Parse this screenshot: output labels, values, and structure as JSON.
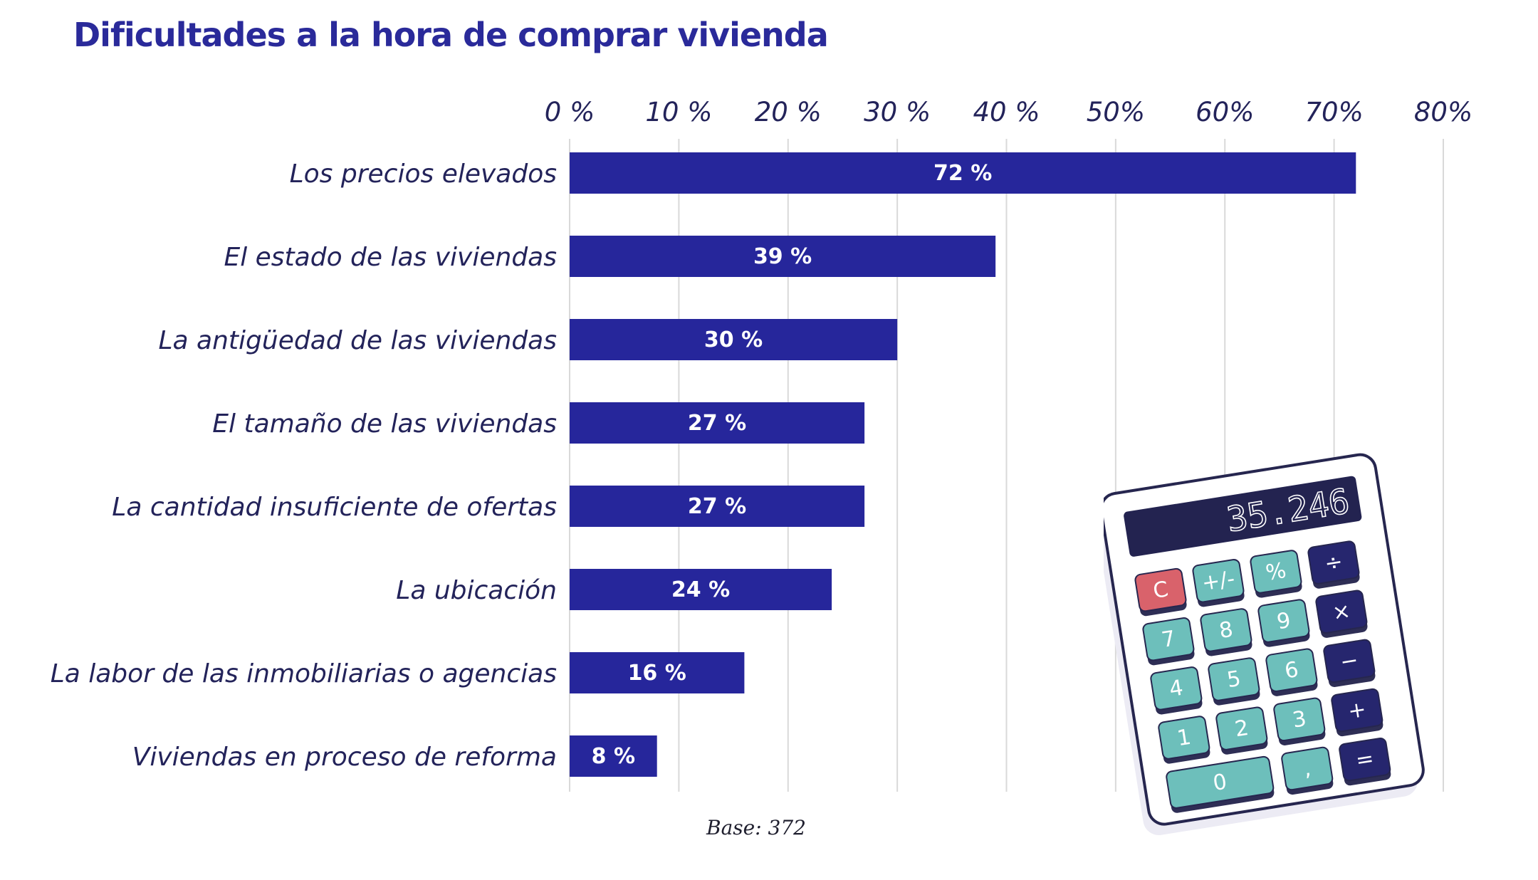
{
  "chart_data": {
    "type": "bar",
    "orientation": "horizontal",
    "title": "Dificultades a la hora de comprar vivienda",
    "categories": [
      "Los precios elevados",
      "El estado de las viviendas",
      "La antigüedad de las viviendas",
      "El tamaño de las viviendas",
      "La cantidad insuficiente de ofertas",
      "La ubicación",
      "La labor de las inmobiliarias o agencias",
      "Viviendas en proceso de reforma"
    ],
    "values": [
      72,
      39,
      30,
      27,
      27,
      24,
      16,
      8
    ],
    "value_labels": [
      "72 %",
      "39 %",
      "30 %",
      "27 %",
      "27 %",
      "24 %",
      "16 %",
      "8 %"
    ],
    "xlim": [
      0,
      80
    ],
    "x_ticks": [
      0,
      10,
      20,
      30,
      40,
      50,
      60,
      70,
      80
    ],
    "x_tick_labels": [
      "0 %",
      "10 %",
      "20 %",
      "30 %",
      "40 %",
      "50%",
      "60%",
      "70%",
      "80%"
    ],
    "axis_position": "top",
    "grid": true,
    "legend": "none",
    "note": "Base: 372",
    "colors": {
      "bar": "#26269b",
      "grid": "#d9d9d9",
      "title": "#2a2a9a",
      "label": "#23235a"
    }
  },
  "illustration": {
    "display": "35.246",
    "keys": [
      "C",
      "+/-",
      "%",
      "÷",
      "7",
      "8",
      "9",
      "×",
      "4",
      "5",
      "6",
      "−",
      "1",
      "2",
      "3",
      "+",
      "0",
      ",",
      "="
    ]
  }
}
